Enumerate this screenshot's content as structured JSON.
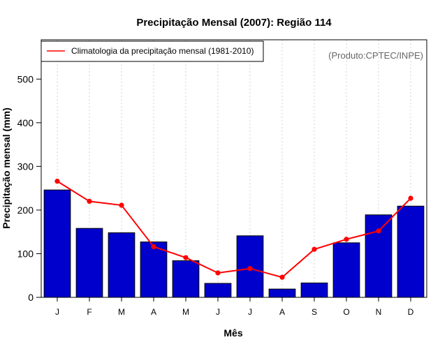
{
  "chart_data": {
    "type": "bar",
    "title": "Precipitação Mensal (2007): Região 114",
    "xlabel": "Mês",
    "ylabel": "Precipitação mensal (mm)",
    "categories": [
      "J",
      "F",
      "M",
      "A",
      "M",
      "J",
      "J",
      "A",
      "S",
      "O",
      "N",
      "D"
    ],
    "ylim": [
      0,
      590
    ],
    "yticks": [
      0,
      100,
      200,
      300,
      400,
      500
    ],
    "grid": "vertical-dotted",
    "series": [
      {
        "name": "Precipitação mensal (2007)",
        "type": "bar",
        "color": "#0000cc",
        "values": [
          246,
          158,
          148,
          127,
          84,
          32,
          141,
          19,
          33,
          125,
          189,
          209
        ]
      },
      {
        "name": "Climatologia da precipitação mensal (1981-2010)",
        "type": "line",
        "color": "#ff0000",
        "values": [
          266,
          220,
          211,
          116,
          91,
          56,
          66,
          46,
          110,
          133,
          152,
          227
        ]
      }
    ],
    "legend": {
      "position": "top-left",
      "label": "Climatologia da precipitação mensal (1981-2010)"
    },
    "annotation": "(Produto:CPTEC/INPE)"
  }
}
